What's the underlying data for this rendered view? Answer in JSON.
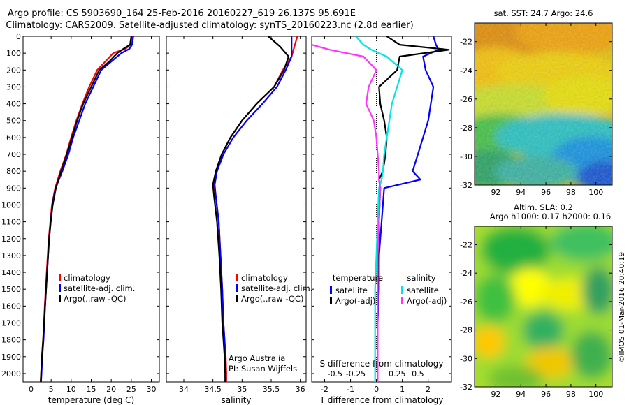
{
  "header": {
    "line1": "Argo profile: CS 5903690_164 25-Feb-2016 20160227_619 26.137S 95.691E",
    "line2": "Climatology: CARS2009. Satellite-adjusted climatology: synTS_20160223.nc (2.8d earlier)"
  },
  "colors": {
    "climatology": "#ff0000",
    "satellite": "#0000ff",
    "argo": "#000000",
    "sat_salinity": "#00e5e5",
    "argo_salinity": "#ff33ff"
  },
  "chart_data": [
    {
      "type": "line",
      "xlabel": "temperature (deg C)",
      "ylabel": "",
      "xlim": [
        -2,
        32
      ],
      "ylim": [
        2050,
        0
      ],
      "xticks": [
        0,
        5,
        10,
        15,
        20,
        25,
        30
      ],
      "yticks": [
        0,
        100,
        200,
        300,
        400,
        500,
        600,
        700,
        800,
        900,
        1000,
        1100,
        1200,
        1300,
        1400,
        1500,
        1600,
        1700,
        1800,
        1900,
        2000
      ],
      "legend": [
        "climatology",
        "satellite-adj. clim.",
        "Argo(..raw -QC)"
      ],
      "legend_position": "center",
      "series": [
        {
          "name": "climatology",
          "color": "#ff0000",
          "x": [
            25.2,
            24.8,
            23.5,
            20.5,
            18.5,
            16.5,
            14.5,
            12.8,
            11.3,
            10.0,
            8.8,
            7.3,
            6.0,
            5.2,
            4.8,
            4.4,
            3.9,
            3.4,
            3.0,
            2.7,
            2.5,
            2.4
          ],
          "y": [
            0,
            50,
            75,
            100,
            150,
            200,
            300,
            400,
            500,
            600,
            700,
            800,
            900,
            1000,
            1100,
            1200,
            1400,
            1600,
            1800,
            1900,
            2000,
            2050
          ]
        },
        {
          "name": "satellite-adj. clim.",
          "color": "#0000ff",
          "x": [
            25.5,
            25.2,
            24.5,
            22.5,
            20.0,
            17.5,
            15.5,
            13.5,
            12.0,
            10.5,
            9.3,
            7.8,
            6.1,
            5.3,
            4.9,
            4.5,
            4.0,
            3.5,
            3.1,
            2.8,
            2.6,
            2.5
          ],
          "y": [
            0,
            50,
            75,
            100,
            150,
            200,
            300,
            400,
            500,
            600,
            700,
            800,
            900,
            1000,
            1100,
            1200,
            1400,
            1600,
            1800,
            1900,
            2000,
            2050
          ]
        },
        {
          "name": "Argo(..raw -QC)",
          "color": "#000000",
          "x": [
            25.0,
            24.7,
            23.0,
            21.5,
            19.5,
            17.0,
            15.0,
            13.0,
            11.5,
            10.2,
            8.9,
            7.5,
            6.2,
            5.4,
            4.9,
            4.5,
            4.0,
            3.5,
            3.0,
            2.7,
            2.5,
            2.4
          ],
          "y": [
            0,
            50,
            75,
            100,
            150,
            200,
            300,
            400,
            500,
            600,
            700,
            800,
            900,
            1000,
            1100,
            1200,
            1400,
            1600,
            1800,
            1900,
            2000,
            2050
          ]
        }
      ]
    },
    {
      "type": "line",
      "xlabel": "salinity",
      "xlim": [
        33.7,
        36.1
      ],
      "ylim": [
        2050,
        0
      ],
      "xticks": [
        34,
        34.5,
        35,
        35.5,
        36
      ],
      "legend": [
        "climatology",
        "satellite-adj. clim.",
        "Argo(..raw -QC)"
      ],
      "legend_position": "center",
      "annotations": [
        "Argo Australia",
        "PI: Susan Wijffels"
      ],
      "series": [
        {
          "name": "climatology",
          "color": "#ff0000",
          "x": [
            35.95,
            35.9,
            35.85,
            35.7,
            35.55,
            35.25,
            35.0,
            34.8,
            34.65,
            34.55,
            34.52,
            34.55,
            34.6,
            34.63,
            34.66,
            34.68,
            34.7,
            34.72,
            34.73,
            34.73
          ],
          "y": [
            0,
            60,
            120,
            200,
            300,
            400,
            500,
            600,
            700,
            800,
            880,
            950,
            1100,
            1300,
            1500,
            1700,
            1800,
            1900,
            2000,
            2050
          ]
        },
        {
          "name": "satellite-adj. clim.",
          "color": "#0000ff",
          "x": [
            35.85,
            35.85,
            35.85,
            35.75,
            35.6,
            35.35,
            35.08,
            34.85,
            34.68,
            34.57,
            34.53,
            34.55,
            34.6,
            34.63,
            34.66,
            34.68,
            34.7,
            34.71,
            34.72,
            34.72
          ],
          "y": [
            0,
            60,
            120,
            200,
            300,
            400,
            500,
            600,
            700,
            800,
            880,
            950,
            1100,
            1300,
            1500,
            1700,
            1800,
            1900,
            2000,
            2050
          ]
        },
        {
          "name": "Argo(..raw -QC)",
          "color": "#000000",
          "x": [
            35.45,
            35.65,
            35.8,
            35.72,
            35.55,
            35.25,
            35.0,
            34.8,
            34.65,
            34.55,
            34.5,
            34.52,
            34.57,
            34.61,
            34.64,
            34.66,
            34.68,
            34.7,
            34.71,
            34.71
          ],
          "y": [
            0,
            60,
            120,
            200,
            300,
            400,
            500,
            600,
            700,
            800,
            880,
            950,
            1100,
            1300,
            1500,
            1700,
            1800,
            1900,
            2000,
            2050
          ]
        }
      ]
    },
    {
      "type": "line",
      "xlabel": "T difference from climatology",
      "xlabel_top": "S difference from climatology",
      "xlim": [
        -2.5,
        2.9
      ],
      "ylim": [
        2050,
        0
      ],
      "xticks": [
        -2,
        -1,
        0,
        1,
        2
      ],
      "xticks_top": [
        "-0.5",
        "-0.25",
        "0",
        "0.25",
        "0.5"
      ],
      "legend_titles": [
        "temperature",
        "salinity"
      ],
      "legend": [
        "satellite",
        "Argo(-adj)",
        "satellite",
        "Argo(-adj)"
      ],
      "series": [
        {
          "name": "temperature satellite",
          "color": "#0000ff",
          "x": [
            2.2,
            2.3,
            2.4,
            1.8,
            1.9,
            2.2,
            2.1,
            2.0,
            1.8,
            1.6,
            1.4,
            1.7,
            0.3,
            0.2,
            0.1,
            0.1,
            0.05,
            0.05,
            0.05
          ],
          "y": [
            0,
            50,
            80,
            120,
            200,
            300,
            400,
            500,
            600,
            700,
            800,
            850,
            900,
            1100,
            1300,
            1500,
            1700,
            1900,
            2050
          ]
        },
        {
          "name": "temperature Argo(-adj)",
          "color": "#000000",
          "x": [
            0.4,
            0.9,
            2.8,
            0.9,
            0.8,
            0.1,
            0.15,
            0.3,
            0.4,
            0.35,
            0.25,
            0.1,
            0.15,
            0.1,
            0.1,
            0.05,
            0.05,
            0.05,
            0.05
          ],
          "y": [
            0,
            50,
            80,
            120,
            200,
            300,
            400,
            500,
            600,
            700,
            800,
            850,
            900,
            1100,
            1300,
            1500,
            1700,
            1900,
            2050
          ]
        },
        {
          "name": "salinity satellite",
          "color": "#00e5e5",
          "x": [
            -0.8,
            -0.5,
            -0.2,
            0.4,
            1.0,
            0.8,
            0.6,
            0.5,
            0.4,
            0.3,
            0.25,
            0.2,
            0.1,
            0.05,
            0.0,
            -0.05,
            -0.05,
            -0.05,
            -0.05
          ],
          "y": [
            0,
            50,
            80,
            120,
            200,
            300,
            400,
            500,
            600,
            700,
            800,
            850,
            900,
            1100,
            1300,
            1500,
            1700,
            1900,
            2050
          ]
        },
        {
          "name": "salinity Argo(-adj)",
          "color": "#ff33ff",
          "x": [
            -2.7,
            -2.5,
            -1.8,
            -0.5,
            0.0,
            -0.3,
            -0.4,
            -0.1,
            0.0,
            0.05,
            0.1,
            0.1,
            0.15,
            0.1,
            0.05,
            0.05,
            0.05,
            0.05,
            0.05
          ],
          "y": [
            0,
            50,
            80,
            120,
            200,
            300,
            400,
            500,
            600,
            700,
            800,
            850,
            900,
            1100,
            1300,
            1500,
            1700,
            1900,
            2050
          ]
        }
      ]
    },
    {
      "type": "heatmap",
      "title": "sat. SST: 24.7 Argo: 24.6",
      "xlim": [
        90.3,
        101.3
      ],
      "ylim": [
        -32,
        -20.7
      ],
      "xticks": [
        92,
        94,
        96,
        98,
        100
      ],
      "yticks": [
        -32,
        -30,
        -28,
        -26,
        -24,
        -22
      ]
    },
    {
      "type": "heatmap",
      "title_line1": "Altim. SLA: 0.2",
      "title_line2": "Argo h1000: 0.17 h2000: 0.16",
      "xlim": [
        90.3,
        101.3
      ],
      "ylim": [
        -32,
        -20.7
      ],
      "xticks": [
        92,
        94,
        96,
        98,
        100
      ],
      "yticks": [
        -32,
        -30,
        -28,
        -26,
        -24,
        -22
      ]
    }
  ],
  "footer": {
    "credit": "©IMOS 01-Mar-2016 20:40:19"
  }
}
